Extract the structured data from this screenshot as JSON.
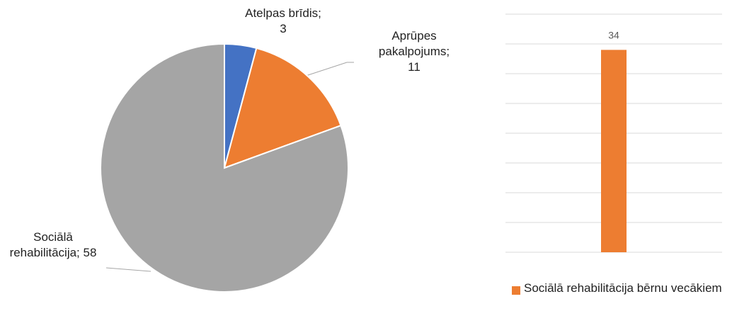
{
  "chart_data": [
    {
      "type": "pie",
      "categories": [
        "Atelpas brīdis",
        "Aprūpes pakalpojums",
        "Sociālā rehabilitācija"
      ],
      "values": [
        3,
        11,
        58
      ],
      "value_labels": [
        "Atelpas brīdis; 3",
        "Aprūpes pakalpojums; 11",
        "Sociālā rehabilitācija; 58"
      ],
      "colors": [
        "#4472c4",
        "#ed7d31",
        "#a5a5a5"
      ]
    },
    {
      "type": "bar",
      "categories": [
        null
      ],
      "series": [
        {
          "name": "Sociālā rehabilitācija bērnu vecākiem",
          "color": "#ed7d31",
          "values": [
            34
          ]
        }
      ],
      "ylim": [
        0,
        40
      ],
      "yticks": [
        0,
        5,
        10,
        15,
        20,
        25,
        30,
        35,
        40
      ],
      "grid": true,
      "legend": "bottom"
    }
  ]
}
